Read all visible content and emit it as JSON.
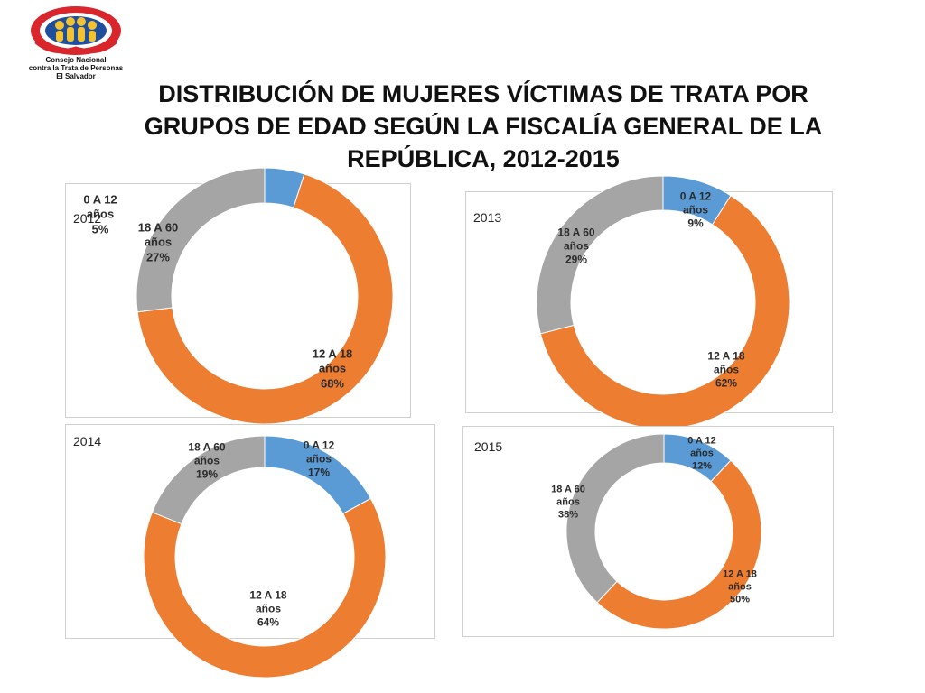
{
  "logo": {
    "line1": "Consejo Nacional",
    "line2": "contra la Trata de Personas",
    "line3": "El Salvador"
  },
  "title": {
    "line1": "DISTRIBUCIÓN DE MUJERES VÍCTIMAS DE TRATA POR",
    "line2": "GRUPOS DE EDAD SEGÚN LA FISCALÍA GENERAL DE LA",
    "line3": "REPÚBLICA, 2012-2015"
  },
  "colors": {
    "0 A 12 años": "#5b9bd5",
    "12 A 18 años": "#ed7d31",
    "18 A 60 años": "#a5a5a5"
  },
  "chart_data": [
    {
      "type": "pie",
      "variant": "donut",
      "title": "2012",
      "categories": [
        "0 A 12 años",
        "12 A 18 años",
        "18 A 60 años"
      ],
      "values": [
        5,
        68,
        27
      ],
      "labels": [
        {
          "group": "0 A 12",
          "unit": "años",
          "pct": "5%"
        },
        {
          "group": "12 A 18",
          "unit": "años",
          "pct": "68%"
        },
        {
          "group": "18 A 60",
          "unit": "años",
          "pct": "27%"
        }
      ]
    },
    {
      "type": "pie",
      "variant": "donut",
      "title": "2013",
      "categories": [
        "0 A 12 años",
        "12 A 18 años",
        "18 A 60 años"
      ],
      "values": [
        9,
        62,
        29
      ],
      "labels": [
        {
          "group": "0 A 12",
          "unit": "años",
          "pct": "9%"
        },
        {
          "group": "12 A 18",
          "unit": "años",
          "pct": "62%"
        },
        {
          "group": "18 A 60",
          "unit": "años",
          "pct": "29%"
        }
      ]
    },
    {
      "type": "pie",
      "variant": "donut",
      "title": "2014",
      "categories": [
        "0 A 12 años",
        "12 A 18 años",
        "18 A 60 años"
      ],
      "values": [
        17,
        64,
        19
      ],
      "labels": [
        {
          "group": "0 A 12",
          "unit": "años",
          "pct": "17%"
        },
        {
          "group": "12 A 18",
          "unit": "años",
          "pct": "64%"
        },
        {
          "group": "18 A 60",
          "unit": "años",
          "pct": "19%"
        }
      ]
    },
    {
      "type": "pie",
      "variant": "donut",
      "title": "2015",
      "categories": [
        "0 A 12 años",
        "12 A 18 años",
        "18 A 60 años"
      ],
      "values": [
        12,
        50,
        38
      ],
      "labels": [
        {
          "group": "0 A 12",
          "unit": "años",
          "pct": "12%"
        },
        {
          "group": "12 A 18",
          "unit": "años",
          "pct": "50%"
        },
        {
          "group": "18 A 60",
          "unit": "años",
          "pct": "38%"
        }
      ]
    }
  ]
}
